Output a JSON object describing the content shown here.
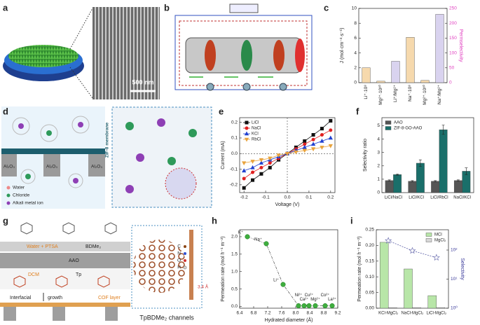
{
  "panel_labels": [
    "a",
    "b",
    "c",
    "d",
    "e",
    "f",
    "g",
    "h",
    "i"
  ],
  "panel_a": {
    "scale_bar": "500 nm"
  },
  "panel_d": {
    "membrane": "ZIF-8 membrane",
    "substrate": [
      "Al₂O₃",
      "Al₂O₃",
      "Al₂O₃"
    ],
    "legend": [
      "Water",
      "Chloride",
      "Alkali metal ion"
    ]
  },
  "panel_g": {
    "solution_top": "Water + PTSA",
    "monomer_top": "BDMe₂",
    "support": "AAO",
    "solution_bottom": "DCM",
    "monomer_bottom": "Tp",
    "process": [
      "Interfacial",
      "growth"
    ],
    "layer": "COF layer",
    "caption": "TpBDMe₂ channels",
    "legend": [
      "C",
      "N",
      "O",
      "H"
    ],
    "spacing": "3.4 Å"
  },
  "chart_data": [
    {
      "type": "bar",
      "ylabel": "J (mol·cm⁻²·s⁻¹)",
      "y2label": "Permselectivity",
      "y2label_color": "#e040c0",
      "categories": [
        "Li⁺·10⁸",
        "Mg²⁺·10¹⁰",
        "Li⁺/Mg²⁺",
        "Na⁺·10⁸",
        "Mg²⁺·10¹⁰",
        "Na⁺/Mg²⁺"
      ],
      "series": [
        {
          "color": "#f6d9ad",
          "values": [
            2.0,
            0.2,
            null,
            6.1,
            0.3,
            null
          ]
        },
        {
          "color": "#d9d3ef",
          "axis": "y2",
          "values": [
            null,
            null,
            72,
            null,
            null,
            230
          ]
        }
      ],
      "ylim": [
        0,
        10
      ],
      "yticks": [
        0,
        2,
        4,
        6,
        8,
        10
      ],
      "y2lim": [
        0,
        250
      ],
      "y2ticks": [
        0,
        50,
        100,
        150,
        200,
        250
      ]
    },
    {
      "type": "line",
      "xlabel": "Voltage (V)",
      "ylabel": "Current (mA)",
      "x": [
        -0.2,
        -0.16,
        -0.12,
        -0.08,
        -0.04,
        0,
        0.04,
        0.08,
        0.12,
        0.16,
        0.2
      ],
      "series": [
        {
          "name": "LiCl",
          "color": "#111111",
          "marker": "square",
          "values": [
            -0.22,
            -0.17,
            -0.13,
            -0.09,
            -0.04,
            0,
            0.04,
            0.08,
            0.12,
            0.16,
            0.21
          ]
        },
        {
          "name": "NaCl",
          "color": "#e02020",
          "marker": "circle",
          "values": [
            -0.16,
            -0.12,
            -0.09,
            -0.06,
            -0.03,
            0,
            0.03,
            0.06,
            0.09,
            0.12,
            0.15
          ]
        },
        {
          "name": "KCl",
          "color": "#2040d0",
          "marker": "triangle",
          "values": [
            -0.11,
            -0.09,
            -0.06,
            -0.04,
            -0.02,
            0,
            0.02,
            0.04,
            0.06,
            0.08,
            0.1
          ]
        },
        {
          "name": "RbCl",
          "color": "#e8a33d",
          "marker": "triangle-down",
          "values": [
            -0.06,
            -0.05,
            -0.04,
            -0.03,
            -0.01,
            0,
            0.01,
            0.02,
            0.03,
            0.04,
            0.05
          ]
        }
      ],
      "xlim": [
        -0.22,
        0.22
      ],
      "xticks": [
        -0.2,
        -0.1,
        {
          "value": 0,
          "label": "0.0"
        },
        0.1,
        0.2
      ],
      "ylim": [
        -0.25,
        0.23
      ],
      "yticks": [
        -0.2,
        -0.1,
        {
          "value": 0,
          "label": "0.0"
        },
        0.1,
        0.2
      ],
      "zero_lines": true,
      "legend": "upper left"
    },
    {
      "type": "bar",
      "ylabel": "Selectivity ratio",
      "categories": [
        "LiCl/NaCl",
        "LiCl/KCl",
        "LiCl/RbCl",
        "NaCl/KCl"
      ],
      "series": [
        {
          "name": "AAO",
          "color": "#555555",
          "values": [
            0.9,
            0.85,
            0.85,
            0.9
          ],
          "errors": [
            0.05,
            0.05,
            0.05,
            0.05
          ]
        },
        {
          "name": "ZIF-8-GO-AAO",
          "color": "#1a6f6a",
          "values": [
            1.35,
            2.2,
            4.7,
            1.6
          ],
          "errors": [
            0.05,
            0.25,
            0.35,
            0.25
          ]
        }
      ],
      "ylim": [
        0,
        5.6
      ],
      "yticks": [
        0,
        1,
        2,
        3,
        4,
        5
      ],
      "legend": "upper left"
    },
    {
      "type": "scatter",
      "xlabel": "Hydrated diameter (Å)",
      "ylabel": "Permeation rate (mol h⁻¹ m⁻²)",
      "x": [
        6.62,
        7.16,
        7.64,
        8.08,
        8.24,
        8.38,
        8.56,
        8.84,
        9.04
      ],
      "values": [
        2.0,
        1.8,
        0.63,
        0.02,
        0.02,
        0.02,
        0.02,
        0.02,
        0.02
      ],
      "point_labels": [
        "K⁺",
        "Na⁺",
        "Li⁺",
        "Ni²⁺",
        "Ca²⁺",
        "Cu²⁺",
        "Mg²⁺",
        "Co²⁺",
        "La³⁺"
      ],
      "color": "#3fae3f",
      "trend_line": true,
      "xlim": [
        6.4,
        9.2
      ],
      "xticks": [
        6.4,
        6.8,
        7.2,
        7.6,
        {
          "value": 8,
          "label": "8.0"
        },
        8.4,
        8.8,
        9.2
      ],
      "ylim": [
        -0.05,
        2.2
      ],
      "yticks": [
        {
          "value": 0,
          "label": "0.0"
        },
        0.5,
        {
          "value": 1,
          "label": "1.0"
        },
        1.5,
        {
          "value": 2,
          "label": "2.0"
        }
      ]
    },
    {
      "type": "bar",
      "ylabel": "Permeation rate (mol h⁻¹ m⁻²)",
      "y2label": "Selectivity",
      "y2label_color": "#3a3a9a",
      "categories": [
        "KCl-MgCl₂",
        "NaCl-MgCl₂",
        "LiCl-MgCl₂"
      ],
      "series": [
        {
          "name": "MCl",
          "color": "#b8e6a8",
          "values": [
            0.21,
            0.125,
            0.04
          ]
        },
        {
          "name": "MgCl₂",
          "color": "#d8d8d8",
          "values": [
            0.002,
            0.002,
            0.002
          ]
        },
        {
          "type": "line",
          "axis": "y2",
          "color": "#5b5ea6",
          "marker": "star",
          "marker_face": "#ffffff",
          "dashed": true,
          "values": [
            210,
            95,
            55
          ]
        }
      ],
      "ylim": [
        0,
        0.25
      ],
      "yticks": [
        {
          "value": 0,
          "label": "0.00"
        },
        {
          "value": 0.05,
          "label": "0.05"
        },
        {
          "value": 0.1,
          "label": "0.10"
        },
        {
          "value": 0.15,
          "label": "0.15"
        },
        {
          "value": 0.2,
          "label": "0.20"
        },
        {
          "value": 0.25,
          "label": "0.25"
        }
      ],
      "y2lim": [
        1,
        500
      ],
      "y2log": true,
      "y2ticks": [
        {
          "value": 1,
          "label": "10⁰"
        },
        {
          "value": 10,
          "label": "10¹"
        },
        {
          "value": 100,
          "label": "10²"
        }
      ],
      "legend": "upper right"
    }
  ]
}
